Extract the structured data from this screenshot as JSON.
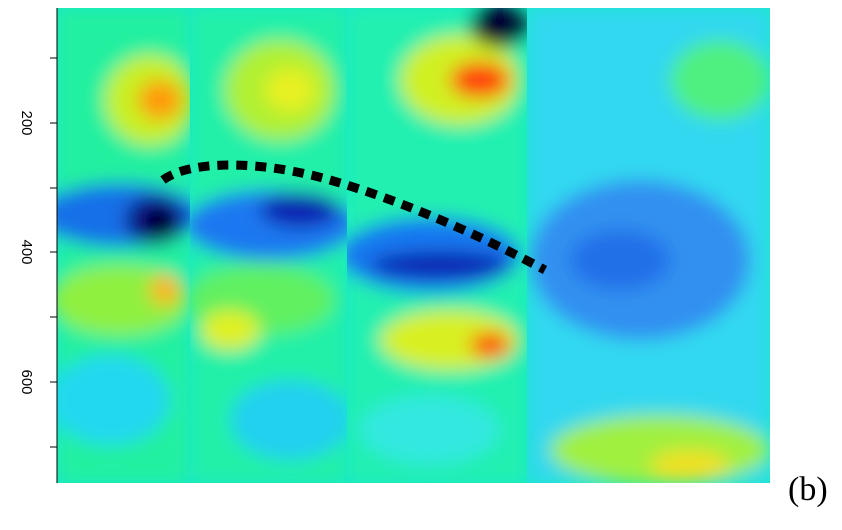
{
  "axis": {
    "ticks": [
      "200",
      "400",
      "600"
    ]
  },
  "panel_label": "(b)"
}
